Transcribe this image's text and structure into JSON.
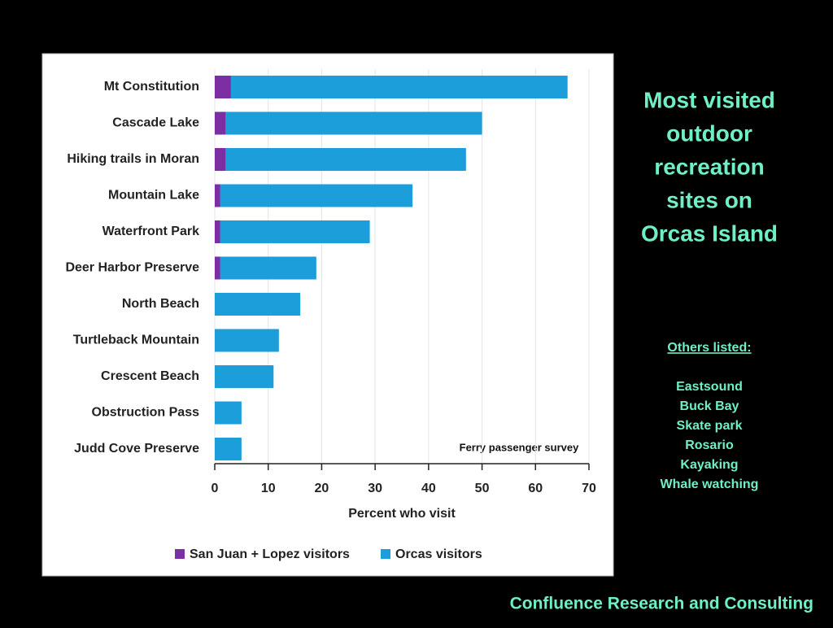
{
  "chart_data": {
    "type": "bar",
    "orientation": "horizontal",
    "overlap": true,
    "categories": [
      "Mt Constitution",
      "Cascade Lake",
      "Hiking trails in Moran",
      "Mountain Lake",
      "Waterfront Park",
      "Deer Harbor Preserve",
      "North Beach",
      "Turtleback Mountain",
      "Crescent Beach",
      "Obstruction Pass",
      "Judd Cove Preserve"
    ],
    "series": [
      {
        "name": "San Juan + Lopez visitors",
        "color": "#7b2fa3",
        "values": [
          3,
          2,
          2,
          1,
          1,
          1,
          0,
          0,
          0,
          0,
          0
        ]
      },
      {
        "name": "Orcas visitors",
        "color": "#1c9edb",
        "values": [
          66,
          50,
          47,
          37,
          29,
          19,
          16,
          12,
          11,
          5,
          5
        ]
      }
    ],
    "xlabel": "Percent who visit",
    "xlim": [
      0,
      70
    ],
    "xticks": [
      0,
      10,
      20,
      30,
      40,
      50,
      60,
      70
    ],
    "grid": true,
    "annotation": "Ferry passenger survey",
    "legend": "bottom"
  },
  "side_panel": {
    "title_lines": [
      "Most visited",
      "outdoor",
      "recreation",
      "sites on",
      "Orcas Island"
    ],
    "others_heading": "Others listed:",
    "others": [
      "Eastsound",
      "Buck Bay",
      "Skate park",
      "Rosario",
      "Kayaking",
      "Whale watching"
    ]
  },
  "footer": "Confluence Research and Consulting"
}
